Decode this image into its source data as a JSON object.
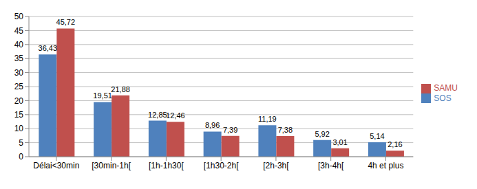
{
  "chart_data": {
    "type": "bar",
    "categories": [
      "Délai<30min",
      "[30min-1h[",
      "[1h-1h30[",
      "[1h30-2h[",
      "[2h-3h[",
      "[3h-4h[",
      "4h et plus"
    ],
    "series": [
      {
        "name": "SOS",
        "color": "#4F81BD",
        "values": [
          36.43,
          19.51,
          12.85,
          8.96,
          11.19,
          5.92,
          5.14
        ],
        "value_labels": [
          "36,43",
          "19,51",
          "12,85",
          "8,96",
          "11,19",
          "5,92",
          "5,14"
        ]
      },
      {
        "name": "SAMU",
        "color": "#C0504D",
        "values": [
          45.72,
          21.88,
          12.46,
          7.39,
          7.38,
          3.01,
          2.16
        ],
        "value_labels": [
          "45,72",
          "21,88",
          "12,46",
          "7,39",
          "7,38",
          "3,01",
          "2,16"
        ]
      }
    ],
    "ylim": [
      0,
      50
    ],
    "yticks": [
      0,
      5,
      10,
      15,
      20,
      25,
      30,
      35,
      40,
      45,
      50
    ],
    "grid": true,
    "legend": "right",
    "data_labels": true
  }
}
